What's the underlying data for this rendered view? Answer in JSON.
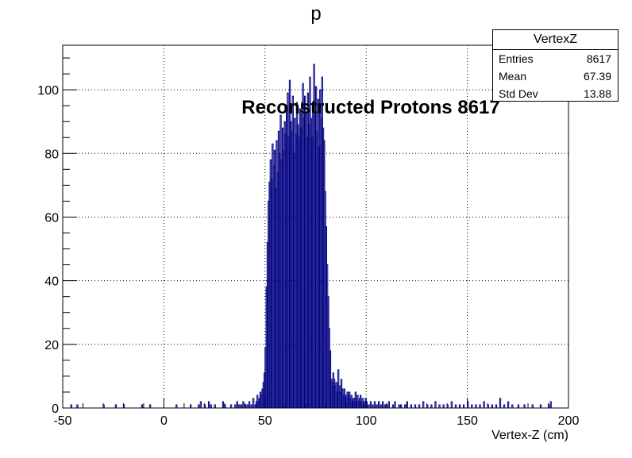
{
  "chart_data": {
    "type": "histogram",
    "title": "p",
    "xlabel": "Vertex-Z (cm)",
    "ylabel": "",
    "xlim": [
      -50,
      200
    ],
    "ylim": [
      0,
      114
    ],
    "xticks": [
      -50,
      0,
      50,
      100,
      150,
      200
    ],
    "yticks": [
      0,
      20,
      40,
      60,
      80,
      100
    ],
    "grid": true,
    "line_color": "#000080",
    "annotation": "Reconstructed Protons 8617",
    "stats": {
      "name": "VertexZ",
      "rows": [
        {
          "label": "Entries",
          "value": "8617"
        },
        {
          "label": "Mean",
          "value": "67.39"
        },
        {
          "label": "Std Dev",
          "value": "13.88"
        }
      ]
    },
    "bin_width": 0.5,
    "bins": [
      [
        -46,
        1
      ],
      [
        -43,
        1
      ],
      [
        -30,
        1
      ],
      [
        -24,
        1
      ],
      [
        -20,
        1
      ],
      [
        -11,
        1
      ],
      [
        -7,
        1
      ],
      [
        6,
        1
      ],
      [
        13,
        1
      ],
      [
        17,
        1
      ],
      [
        18,
        2
      ],
      [
        20,
        1
      ],
      [
        22,
        2
      ],
      [
        23,
        1
      ],
      [
        25,
        1
      ],
      [
        29,
        2
      ],
      [
        30,
        1
      ],
      [
        33,
        1
      ],
      [
        35,
        1
      ],
      [
        36,
        2
      ],
      [
        37,
        1
      ],
      [
        38,
        1
      ],
      [
        39,
        2
      ],
      [
        40,
        1
      ],
      [
        41,
        1
      ],
      [
        42,
        2
      ],
      [
        43,
        1
      ],
      [
        44,
        3
      ],
      [
        45,
        1
      ],
      [
        45.5,
        2
      ],
      [
        46,
        4
      ],
      [
        46.5,
        2
      ],
      [
        47,
        3
      ],
      [
        47.5,
        5
      ],
      [
        48,
        4
      ],
      [
        48.5,
        6
      ],
      [
        49,
        8
      ],
      [
        49.5,
        11
      ],
      [
        50,
        19
      ],
      [
        50.5,
        38
      ],
      [
        51,
        52
      ],
      [
        51.5,
        65
      ],
      [
        52,
        71
      ],
      [
        52.5,
        78
      ],
      [
        53,
        72
      ],
      [
        53.5,
        83
      ],
      [
        54,
        76
      ],
      [
        54.5,
        81
      ],
      [
        55,
        69
      ],
      [
        55.5,
        84
      ],
      [
        56,
        74
      ],
      [
        56.5,
        87
      ],
      [
        57,
        80
      ],
      [
        57.5,
        92
      ],
      [
        58,
        78
      ],
      [
        58.5,
        88
      ],
      [
        59,
        81
      ],
      [
        59.5,
        90
      ],
      [
        60,
        86
      ],
      [
        60.5,
        95
      ],
      [
        61,
        99
      ],
      [
        61.5,
        85
      ],
      [
        62,
        103
      ],
      [
        62.5,
        90
      ],
      [
        63,
        87
      ],
      [
        63.5,
        98
      ],
      [
        64,
        80
      ],
      [
        64.5,
        91
      ],
      [
        65,
        86
      ],
      [
        65.5,
        96
      ],
      [
        66,
        89
      ],
      [
        66.5,
        85
      ],
      [
        67,
        94
      ],
      [
        67.5,
        88
      ],
      [
        68,
        96
      ],
      [
        68.5,
        102
      ],
      [
        69,
        91
      ],
      [
        69.5,
        98
      ],
      [
        70,
        93
      ],
      [
        70.5,
        85
      ],
      [
        71,
        99
      ],
      [
        71.5,
        89
      ],
      [
        72,
        104
      ],
      [
        72.5,
        91
      ],
      [
        73,
        85
      ],
      [
        73.5,
        96
      ],
      [
        74,
        108
      ],
      [
        74.5,
        92
      ],
      [
        75,
        101
      ],
      [
        75.5,
        87
      ],
      [
        76,
        97
      ],
      [
        76.5,
        82
      ],
      [
        77,
        100
      ],
      [
        77.5,
        91
      ],
      [
        78,
        104
      ],
      [
        78.5,
        88
      ],
      [
        79,
        84
      ],
      [
        79.5,
        68
      ],
      [
        80,
        57
      ],
      [
        80.5,
        45
      ],
      [
        81,
        35
      ],
      [
        81.5,
        25
      ],
      [
        82,
        18
      ],
      [
        82.5,
        9
      ],
      [
        83,
        8
      ],
      [
        83.5,
        11
      ],
      [
        84,
        9
      ],
      [
        84.5,
        7
      ],
      [
        85,
        8
      ],
      [
        85.5,
        5
      ],
      [
        86,
        12
      ],
      [
        86.5,
        7
      ],
      [
        87,
        5
      ],
      [
        87.5,
        9
      ],
      [
        88,
        6
      ],
      [
        88.5,
        4
      ],
      [
        89,
        6
      ],
      [
        89.5,
        4
      ],
      [
        90,
        3
      ],
      [
        90.5,
        5
      ],
      [
        91,
        4
      ],
      [
        91.5,
        5
      ],
      [
        92,
        3
      ],
      [
        92.5,
        4
      ],
      [
        93,
        2
      ],
      [
        93.5,
        3
      ],
      [
        94,
        3
      ],
      [
        94.5,
        5
      ],
      [
        95,
        2
      ],
      [
        95.5,
        4
      ],
      [
        96,
        2
      ],
      [
        96.5,
        3
      ],
      [
        97,
        4
      ],
      [
        97.5,
        2
      ],
      [
        98,
        3
      ],
      [
        98.5,
        1
      ],
      [
        99,
        2
      ],
      [
        99.5,
        3
      ],
      [
        100,
        2
      ],
      [
        101,
        1
      ],
      [
        102,
        2
      ],
      [
        103,
        1
      ],
      [
        104,
        2
      ],
      [
        105,
        1
      ],
      [
        106,
        2
      ],
      [
        107,
        1
      ],
      [
        108,
        2
      ],
      [
        109,
        1
      ],
      [
        110,
        1
      ],
      [
        111,
        2
      ],
      [
        113,
        1
      ],
      [
        114,
        2
      ],
      [
        116,
        1
      ],
      [
        117,
        1
      ],
      [
        119,
        1
      ],
      [
        120,
        2
      ],
      [
        122,
        1
      ],
      [
        124,
        1
      ],
      [
        126,
        1
      ],
      [
        128,
        2
      ],
      [
        130,
        1
      ],
      [
        132,
        1
      ],
      [
        134,
        2
      ],
      [
        136,
        1
      ],
      [
        138,
        1
      ],
      [
        140,
        1
      ],
      [
        142,
        2
      ],
      [
        144,
        1
      ],
      [
        146,
        1
      ],
      [
        148,
        1
      ],
      [
        150,
        2
      ],
      [
        152,
        1
      ],
      [
        154,
        1
      ],
      [
        156,
        1
      ],
      [
        158,
        2
      ],
      [
        160,
        1
      ],
      [
        162,
        1
      ],
      [
        164,
        1
      ],
      [
        166,
        3
      ],
      [
        168,
        1
      ],
      [
        170,
        2
      ],
      [
        172,
        1
      ],
      [
        175,
        1
      ],
      [
        178,
        1
      ],
      [
        182,
        1
      ],
      [
        186,
        1
      ],
      [
        190,
        1
      ],
      [
        191,
        2
      ]
    ]
  }
}
